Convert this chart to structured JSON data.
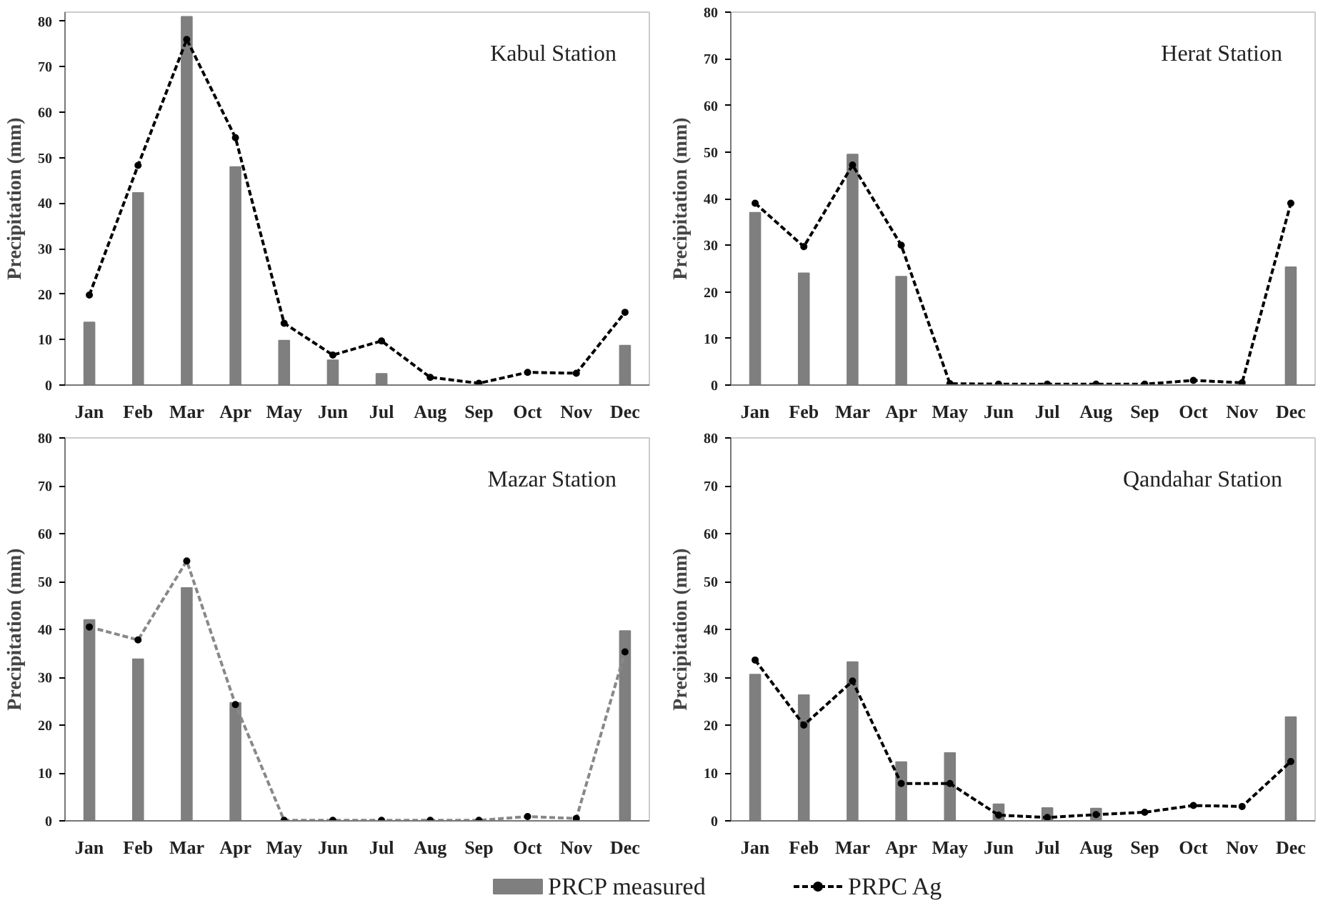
{
  "chart_data": [
    {
      "type": "bar",
      "annotations": [
        "Kabul Station"
      ],
      "ylabel": "Precipitation (mm)",
      "categories": [
        "Jan",
        "Feb",
        "Mar",
        "Apr",
        "May",
        "Jun",
        "Jul",
        "Aug",
        "Sep",
        "Oct",
        "Nov",
        "Dec"
      ],
      "ylim": [
        0,
        82
      ],
      "yticks": [
        0,
        10,
        20,
        30,
        40,
        50,
        60,
        70,
        80
      ],
      "legend": "bottom",
      "series": [
        {
          "name": "PRCP measured",
          "color": "#7f7f7f",
          "values": [
            13.8,
            42.3,
            81,
            48,
            9.8,
            5.5,
            2.5,
            0,
            0,
            0,
            0,
            8.7
          ]
        },
        {
          "name": "PRPC Ag",
          "type": "line",
          "color": "#000000",
          "line_style": "dashed",
          "marker": "circle",
          "values": [
            19.8,
            48.3,
            76,
            54.4,
            13.6,
            6.6,
            9.7,
            1.7,
            0.4,
            2.8,
            2.6,
            16
          ]
        }
      ]
    },
    {
      "type": "bar",
      "annotations": [
        "Herat Station"
      ],
      "ylabel": "Precipitation (mm)",
      "categories": [
        "Jan",
        "Feb",
        "Mar",
        "Apr",
        "May",
        "Jun",
        "Jul",
        "Aug",
        "Sep",
        "Oct",
        "Nov",
        "Dec"
      ],
      "ylim": [
        0,
        80
      ],
      "yticks": [
        0,
        10,
        20,
        30,
        40,
        50,
        60,
        70,
        80
      ],
      "series": [
        {
          "color": "#7f7f7f",
          "values": [
            37,
            24,
            49.5,
            23.3,
            0,
            0,
            0,
            0,
            0,
            0,
            0,
            25.3
          ]
        },
        {
          "type": "line",
          "color": "#000000",
          "line_style": "dashed",
          "marker": "circle",
          "values": [
            39,
            29.7,
            47.2,
            30,
            0.3,
            0.2,
            0.2,
            0.2,
            0.2,
            1,
            0.5,
            39
          ]
        }
      ]
    },
    {
      "type": "bar",
      "annotations": [
        "Mazar Station"
      ],
      "ylabel": "Precipitation (mm)",
      "categories": [
        "Jan",
        "Feb",
        "Mar",
        "Apr",
        "May",
        "Jun",
        "Jul",
        "Aug",
        "Sep",
        "Oct",
        "Nov",
        "Dec"
      ],
      "ylim": [
        0,
        80
      ],
      "yticks": [
        0,
        10,
        20,
        30,
        40,
        50,
        60,
        70,
        80
      ],
      "series": [
        {
          "color": "#7f7f7f",
          "values": [
            42,
            33.8,
            48.7,
            24.7,
            0,
            0,
            0,
            0,
            0,
            0,
            0,
            39.7
          ]
        },
        {
          "type": "line",
          "color": "#888888",
          "line_style": "dashed",
          "marker": "circle",
          "values": [
            40.5,
            37.8,
            54.3,
            24.3,
            0.1,
            0.1,
            0.1,
            0.1,
            0.1,
            0.9,
            0.5,
            35.3
          ]
        }
      ]
    },
    {
      "type": "bar",
      "annotations": [
        "Qandahar Station"
      ],
      "ylabel": "Precipitation (mm)",
      "categories": [
        "Jan",
        "Feb",
        "Mar",
        "Apr",
        "May",
        "Jun",
        "Jul",
        "Aug",
        "Sep",
        "Oct",
        "Nov",
        "Dec"
      ],
      "ylim": [
        0,
        80
      ],
      "yticks": [
        0,
        10,
        20,
        30,
        40,
        50,
        60,
        70,
        80
      ],
      "series": [
        {
          "color": "#7f7f7f",
          "values": [
            30.6,
            26.3,
            33.2,
            12.3,
            14.2,
            3.5,
            2.7,
            2.6,
            0,
            0,
            0,
            21.7
          ]
        },
        {
          "type": "line",
          "color": "#000000",
          "line_style": "dashed",
          "marker": "circle",
          "values": [
            33.6,
            20,
            29.2,
            7.8,
            7.8,
            1.2,
            0.7,
            1.3,
            1.8,
            3.2,
            3,
            12.4
          ]
        }
      ]
    }
  ]
}
